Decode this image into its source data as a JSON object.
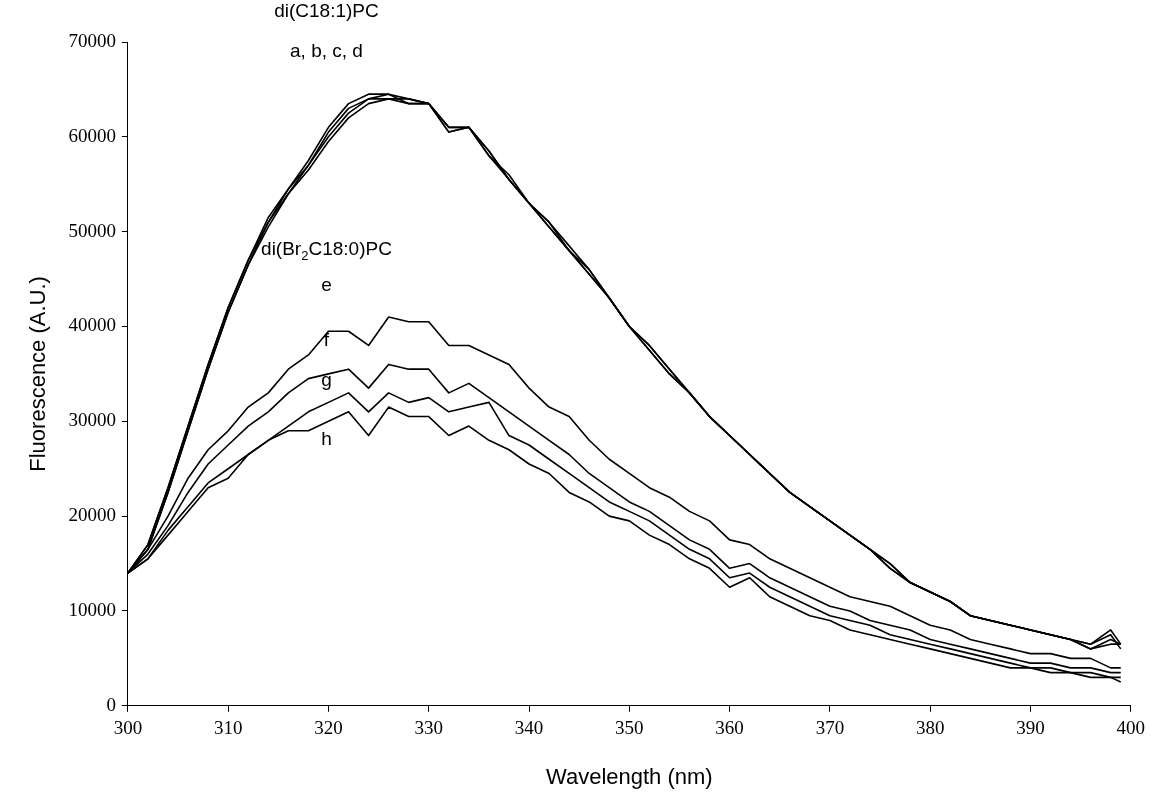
{
  "chart_data": {
    "type": "line",
    "xlabel": "Wavelength (nm)",
    "ylabel": "Fluorescence (A.U.)",
    "x": [
      300,
      302,
      304,
      306,
      308,
      310,
      312,
      314,
      316,
      318,
      320,
      322,
      324,
      326,
      328,
      330,
      332,
      334,
      336,
      338,
      340,
      342,
      344,
      346,
      348,
      350,
      352,
      354,
      356,
      358,
      360,
      362,
      364,
      366,
      368,
      370,
      372,
      374,
      376,
      378,
      380,
      382,
      384,
      386,
      388,
      390,
      392,
      394,
      396,
      398,
      399
    ],
    "series": [
      {
        "color": "#000000",
        "values": [
          14000,
          17000,
          23000,
          29500,
          36000,
          42000,
          47000,
          51500,
          54500,
          57500,
          61000,
          63500,
          64500,
          64500,
          64000,
          63500,
          61000,
          61000,
          58000,
          55500,
          53000,
          51000,
          48000,
          46000,
          43000,
          40000,
          38000,
          35500,
          33000,
          30500,
          28500,
          26500,
          24500,
          22500,
          21000,
          19500,
          18000,
          16500,
          14500,
          13000,
          12000,
          11000,
          9500,
          9000,
          8500,
          8000,
          7500,
          7000,
          6500,
          7500,
          6000
        ]
      },
      {
        "color": "#000000",
        "values": [
          14000,
          17000,
          23000,
          29500,
          36000,
          42000,
          47000,
          51000,
          54500,
          57000,
          60500,
          63000,
          64000,
          64500,
          63500,
          63500,
          61000,
          61000,
          58000,
          56000,
          53000,
          51000,
          48500,
          46000,
          43000,
          40000,
          38000,
          35500,
          33000,
          30500,
          28500,
          26500,
          24500,
          22500,
          21000,
          19500,
          18000,
          16500,
          14500,
          13000,
          12000,
          11000,
          9500,
          9000,
          8500,
          8000,
          7500,
          7000,
          6500,
          8000,
          6500
        ]
      },
      {
        "color": "#000000",
        "values": [
          14000,
          16500,
          22500,
          29000,
          35500,
          41500,
          46500,
          51000,
          54000,
          57000,
          60000,
          62500,
          64000,
          64000,
          64000,
          63500,
          60500,
          61000,
          58500,
          55500,
          53000,
          50500,
          48000,
          45500,
          43000,
          40000,
          37500,
          35000,
          33000,
          30500,
          28500,
          26500,
          24500,
          22500,
          21000,
          19500,
          18000,
          16500,
          15000,
          13000,
          12000,
          11000,
          9500,
          9000,
          8500,
          8000,
          7500,
          7000,
          6000,
          7000,
          6500
        ]
      },
      {
        "color": "#000000",
        "values": [
          14000,
          16500,
          22500,
          29000,
          35500,
          41500,
          46500,
          50500,
          54000,
          56500,
          59500,
          62000,
          63500,
          64000,
          63500,
          63500,
          60500,
          61000,
          58500,
          55500,
          53000,
          50500,
          48000,
          45500,
          43000,
          40000,
          37500,
          35000,
          33000,
          30500,
          28500,
          26500,
          24500,
          22500,
          21000,
          19500,
          18000,
          16500,
          15000,
          13000,
          12000,
          11000,
          9500,
          9000,
          8500,
          8000,
          7500,
          7000,
          6000,
          6500,
          6500
        ]
      },
      {
        "color": "#000000",
        "values": [
          14000,
          16500,
          20000,
          24000,
          27000,
          29000,
          31500,
          33000,
          35500,
          37000,
          39500,
          39500,
          38000,
          41000,
          40500,
          40500,
          38000,
          38000,
          37000,
          36000,
          33500,
          31500,
          30500,
          28000,
          26000,
          24500,
          23000,
          22000,
          20500,
          19500,
          17500,
          17000,
          15500,
          14500,
          13500,
          12500,
          11500,
          11000,
          10500,
          9500,
          8500,
          8000,
          7000,
          6500,
          6000,
          5500,
          5500,
          5000,
          5000,
          4000,
          4000
        ]
      },
      {
        "color": "#000000",
        "values": [
          14000,
          16000,
          19000,
          22500,
          25500,
          27500,
          29500,
          31000,
          33000,
          34500,
          35000,
          35500,
          33500,
          36000,
          35500,
          35500,
          33000,
          34000,
          32500,
          31000,
          29500,
          28000,
          26500,
          24500,
          23000,
          21500,
          20500,
          19000,
          17500,
          16500,
          14500,
          15000,
          13500,
          12500,
          11500,
          10500,
          10000,
          9000,
          8500,
          8000,
          7000,
          6500,
          6000,
          5500,
          5000,
          4500,
          4500,
          4000,
          4000,
          3500,
          3500
        ]
      },
      {
        "color": "#000000",
        "values": [
          14000,
          15500,
          18500,
          21000,
          23500,
          25000,
          26500,
          28000,
          29500,
          31000,
          32000,
          33000,
          31000,
          33000,
          32000,
          32500,
          31000,
          31500,
          32000,
          28500,
          27500,
          26000,
          24500,
          23000,
          21500,
          20500,
          19500,
          18000,
          16500,
          15500,
          13500,
          14000,
          12500,
          11500,
          10500,
          9500,
          9000,
          8500,
          7500,
          7000,
          6500,
          6000,
          5500,
          5000,
          4500,
          4000,
          4000,
          3500,
          3500,
          3000,
          3000
        ]
      },
      {
        "color": "#000000",
        "values": [
          14000,
          15500,
          18000,
          20500,
          23000,
          24000,
          26500,
          28000,
          29000,
          29000,
          30000,
          31000,
          28500,
          31500,
          30500,
          30500,
          28500,
          29500,
          28000,
          27000,
          25500,
          24500,
          22500,
          21500,
          20000,
          19500,
          18000,
          17000,
          15500,
          14500,
          12500,
          13500,
          11500,
          10500,
          9500,
          9000,
          8000,
          7500,
          7000,
          6500,
          6000,
          5500,
          5000,
          4500,
          4000,
          4000,
          3500,
          3500,
          3000,
          3000,
          2500
        ]
      }
    ],
    "xlim": [
      300,
      400
    ],
    "xticks": [
      300,
      310,
      320,
      330,
      340,
      350,
      360,
      370,
      380,
      390,
      400
    ],
    "ylim": [
      0,
      70000
    ],
    "yticks": [
      0,
      10000,
      20000,
      30000,
      40000,
      50000,
      60000,
      70000
    ],
    "grid": false,
    "legend": false,
    "marker": "none",
    "line_style": "solid",
    "annotations": [
      "di(C18:1)PC",
      "a, b, c, d",
      "di(Br$_{2}$C18:0)PC",
      "e",
      "f",
      "g",
      "h"
    ]
  }
}
